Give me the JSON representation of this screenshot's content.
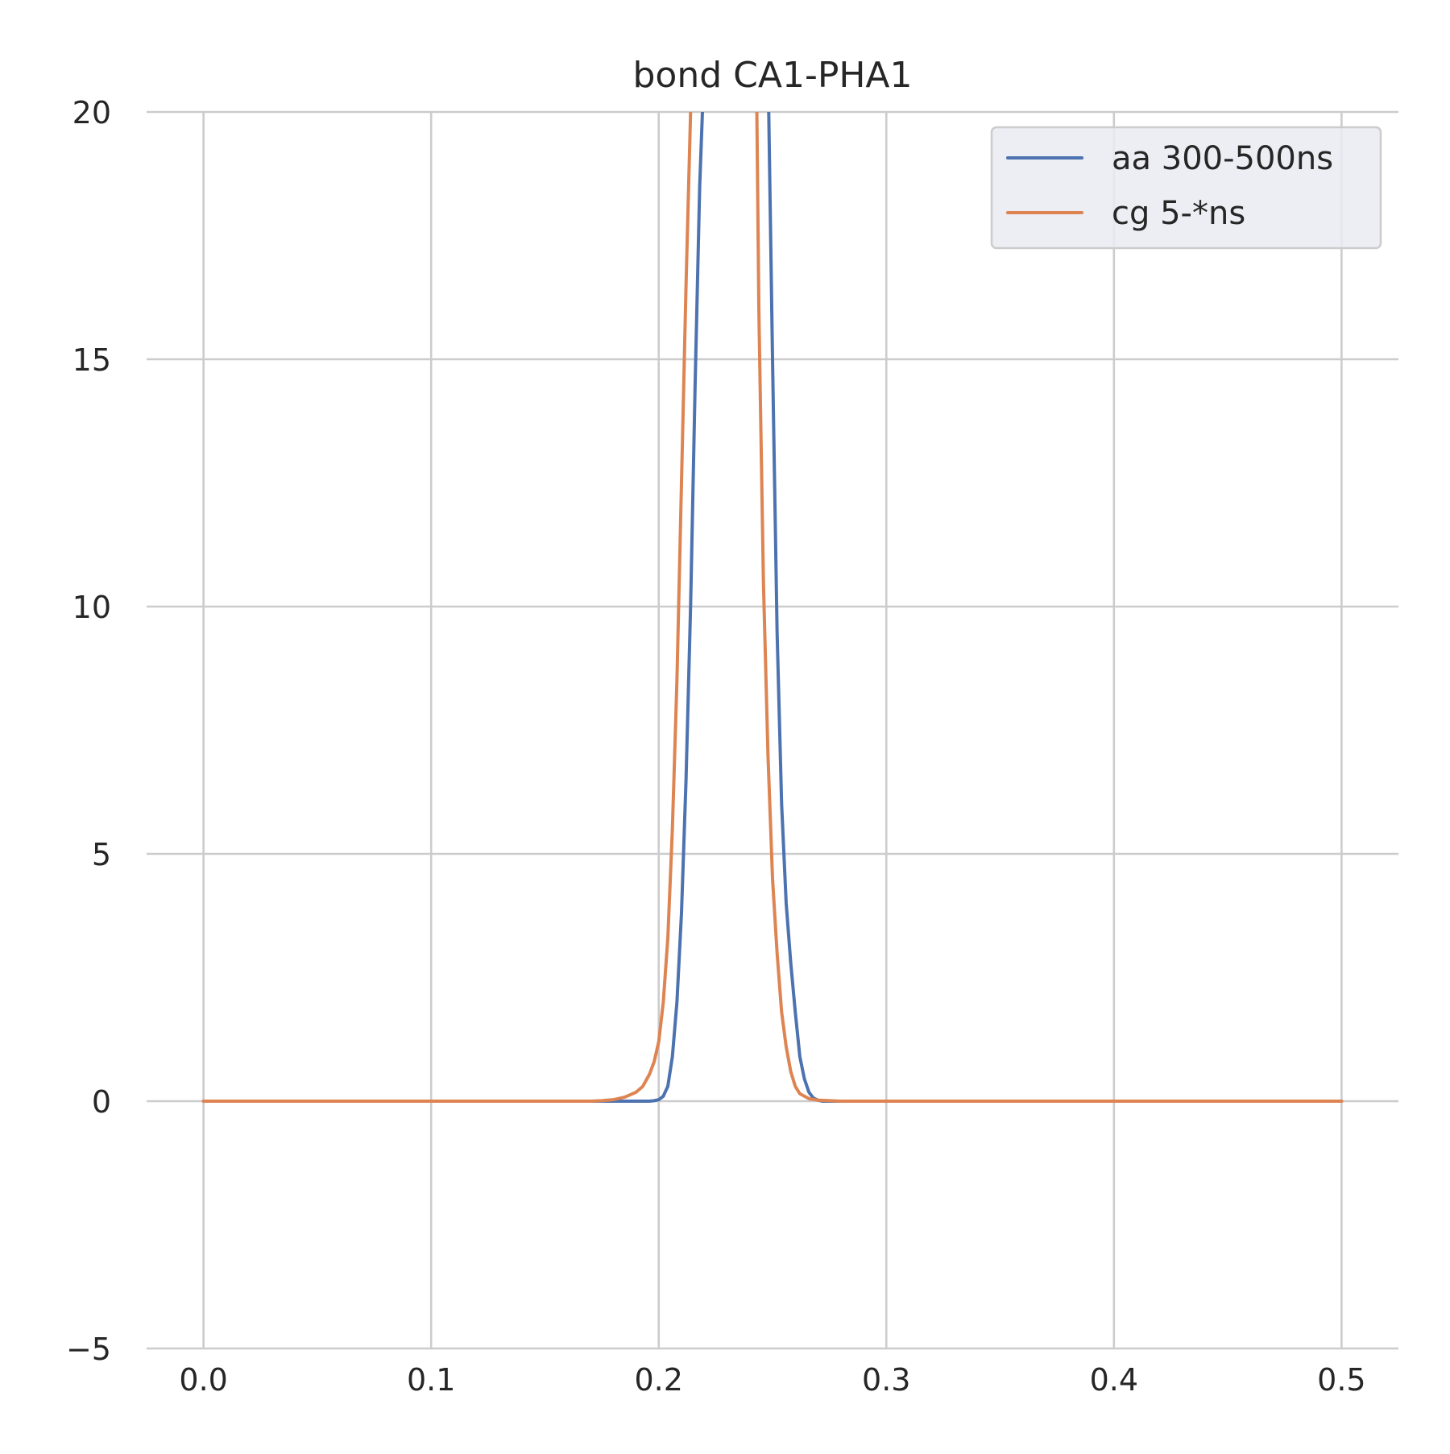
{
  "chart_data": {
    "type": "line",
    "title": "bond CA1-PHA1",
    "xlabel": "",
    "ylabel": "",
    "xlim": [
      -0.025,
      0.525
    ],
    "ylim": [
      -5,
      20
    ],
    "x_ticks": [
      0.0,
      0.1,
      0.2,
      0.3,
      0.4,
      0.5
    ],
    "x_tick_labels": [
      "0.0",
      "0.1",
      "0.2",
      "0.3",
      "0.4",
      "0.5"
    ],
    "y_ticks": [
      -5,
      0,
      5,
      10,
      15,
      20
    ],
    "y_tick_labels": [
      "−5",
      "0",
      "5",
      "10",
      "15",
      "20"
    ],
    "grid": true,
    "legend_position": "top-right",
    "series": [
      {
        "name": "aa 300-500ns",
        "color": "#4c72b0",
        "x": [
          0.0,
          0.1,
          0.18,
          0.196,
          0.198,
          0.2,
          0.202,
          0.204,
          0.206,
          0.208,
          0.21,
          0.212,
          0.214,
          0.216,
          0.218,
          0.22,
          0.222,
          0.246,
          0.248,
          0.25,
          0.252,
          0.254,
          0.256,
          0.258,
          0.26,
          0.262,
          0.264,
          0.266,
          0.268,
          0.27,
          0.272,
          0.28,
          0.3,
          0.4,
          0.5
        ],
        "y": [
          0.0,
          0.0,
          0.0,
          0.0,
          0.01,
          0.03,
          0.1,
          0.3,
          0.9,
          2.0,
          3.8,
          6.5,
          10.0,
          14.5,
          18.5,
          21.0,
          25.0,
          25.0,
          21.0,
          15.0,
          9.5,
          6.0,
          4.0,
          2.8,
          1.8,
          0.9,
          0.45,
          0.18,
          0.06,
          0.02,
          0.0,
          0.0,
          0.0,
          0.0,
          0.0
        ]
      },
      {
        "name": "cg 5-*ns",
        "color": "#dd8452",
        "x": [
          0.0,
          0.1,
          0.17,
          0.175,
          0.18,
          0.185,
          0.19,
          0.193,
          0.196,
          0.198,
          0.2,
          0.202,
          0.204,
          0.206,
          0.208,
          0.21,
          0.212,
          0.214,
          0.216,
          0.242,
          0.244,
          0.246,
          0.248,
          0.25,
          0.252,
          0.254,
          0.256,
          0.258,
          0.26,
          0.262,
          0.266,
          0.27,
          0.28,
          0.3,
          0.4,
          0.5
        ],
        "y": [
          0.0,
          0.0,
          0.0,
          0.01,
          0.03,
          0.08,
          0.18,
          0.3,
          0.55,
          0.8,
          1.2,
          2.0,
          3.3,
          5.5,
          8.5,
          12.5,
          16.5,
          20.0,
          25.0,
          25.0,
          16.0,
          10.5,
          7.0,
          4.5,
          3.0,
          1.8,
          1.1,
          0.6,
          0.3,
          0.15,
          0.05,
          0.02,
          0.0,
          0.0,
          0.0,
          0.0
        ]
      }
    ]
  }
}
